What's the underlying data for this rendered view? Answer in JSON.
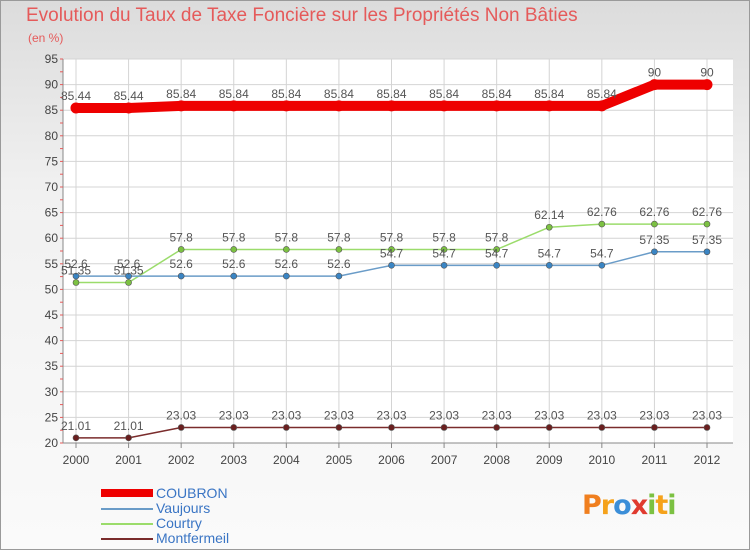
{
  "header": {
    "title": "Evolution du Taux de Taxe Foncière sur les Propriétés Non Bâties",
    "subtitle": "(en %)"
  },
  "logo": {
    "letters": [
      "P",
      "r",
      "o",
      "x",
      "i",
      "t",
      "i"
    ],
    "colors": [
      "#f07f1f",
      "#f5a21b",
      "#3b8ed8",
      "#e03a2f",
      "#7cc142",
      "#f5a21b",
      "#7cc142"
    ]
  },
  "chart_data": {
    "type": "line",
    "title": "Evolution du Taux de Taxe Foncière sur les Propriétés Non Bâties",
    "ylabel": "(en %)",
    "xlabel": "",
    "x": [
      "2000",
      "2001",
      "2002",
      "2003",
      "2004",
      "2005",
      "2006",
      "2007",
      "2008",
      "2009",
      "2010",
      "2011",
      "2012"
    ],
    "ylim": [
      20,
      95
    ],
    "yticks": [
      "20",
      "25",
      "30",
      "35",
      "40",
      "45",
      "50",
      "55",
      "60",
      "65",
      "70",
      "75",
      "80",
      "85",
      "90",
      "95"
    ],
    "grid": true,
    "legend_position": "bottom-left",
    "series": [
      {
        "name": "COUBRON",
        "color": "#ee0000",
        "marker_color": "#ee0000",
        "values": [
          85.44,
          85.44,
          85.84,
          85.84,
          85.84,
          85.84,
          85.84,
          85.84,
          85.84,
          85.84,
          85.84,
          90,
          90
        ],
        "labels": [
          "85.44",
          "85.44",
          "85.84",
          "85.84",
          "85.84",
          "85.84",
          "85.84",
          "85.84",
          "85.84",
          "85.84",
          "85.84",
          "90",
          "90"
        ]
      },
      {
        "name": "Vaujours",
        "color": "#6a9cc8",
        "marker_color": "#3a85c4",
        "values": [
          52.6,
          52.6,
          52.6,
          52.6,
          52.6,
          52.6,
          54.7,
          54.7,
          54.7,
          54.7,
          54.7,
          57.35,
          57.35
        ],
        "labels": [
          "52.6",
          "52.6",
          "52.6",
          "52.6",
          "52.6",
          "52.6",
          "54.7",
          "54.7",
          "54.7",
          "54.7",
          "54.7",
          "57.35",
          "57.35"
        ]
      },
      {
        "name": "Courtry",
        "color": "#9bdc6b",
        "marker_color": "#7cc142",
        "values": [
          51.35,
          51.35,
          57.8,
          57.8,
          57.8,
          57.8,
          57.8,
          57.8,
          57.8,
          62.14,
          62.76,
          62.76,
          62.76
        ],
        "labels": [
          "51.35",
          "51.35",
          "57.8",
          "57.8",
          "57.8",
          "57.8",
          "57.8",
          "57.8",
          "57.8",
          "62.14",
          "62.76",
          "62.76",
          "62.76"
        ]
      },
      {
        "name": "Montfermeil",
        "color": "#7a2c2c",
        "marker_color": "#6a1f1f",
        "values": [
          21.01,
          21.01,
          23.03,
          23.03,
          23.03,
          23.03,
          23.03,
          23.03,
          23.03,
          23.03,
          23.03,
          23.03,
          23.03
        ],
        "labels": [
          "21.01",
          "21.01",
          "23.03",
          "23.03",
          "23.03",
          "23.03",
          "23.03",
          "23.03",
          "23.03",
          "23.03",
          "23.03",
          "23.03",
          "23.03"
        ]
      }
    ]
  }
}
